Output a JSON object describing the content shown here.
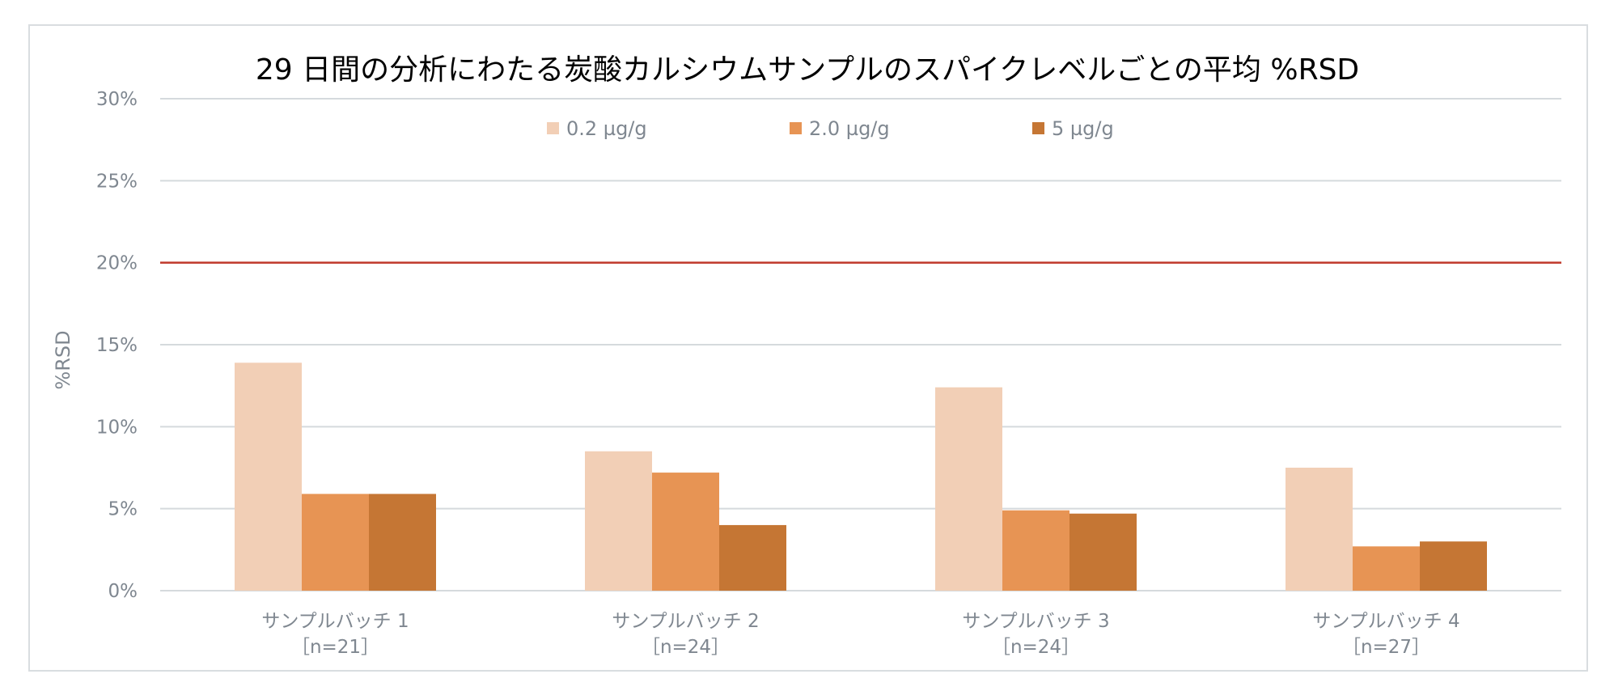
{
  "chart_data": {
    "type": "bar",
    "title": "29 日間の分析にわたる炭酸カルシウムサンプルのスパイクレベルごとの平均 %RSD",
    "ylabel": "%RSD",
    "xlabel": "",
    "ylim": [
      0,
      30
    ],
    "yticks": [
      "0%",
      "5%",
      "10%",
      "15%",
      "20%",
      "25%",
      "30%"
    ],
    "ytick_values": [
      0,
      5,
      10,
      15,
      20,
      25,
      30
    ],
    "grid": true,
    "legend_position": "top-center",
    "reference_line": {
      "value": 20,
      "color": "#c0392b"
    },
    "categories": [
      {
        "line1": "サンプルバッチ 1",
        "line2": "［n=21］"
      },
      {
        "line1": "サンプルバッチ 2",
        "line2": "［n=24］"
      },
      {
        "line1": "サンプルバッチ 3",
        "line2": "［n=24］"
      },
      {
        "line1": "サンプルバッチ 4",
        "line2": "［n=27］"
      }
    ],
    "series": [
      {
        "name": "0.2 µg/g",
        "color": "#f2cfb6",
        "values": [
          13.9,
          8.5,
          12.4,
          7.5
        ]
      },
      {
        "name": "2.0 µg/g",
        "color": "#e79454",
        "values": [
          5.9,
          7.2,
          4.9,
          2.7
        ]
      },
      {
        "name": "5 µg/g",
        "color": "#c57634",
        "values": [
          5.9,
          4.0,
          4.7,
          3.0
        ]
      }
    ]
  },
  "colors": {
    "gridline": "#d5dadd",
    "axis_text": "#7f8790",
    "reference_line": "#c0392b",
    "frame_border": "#d9dde0"
  }
}
